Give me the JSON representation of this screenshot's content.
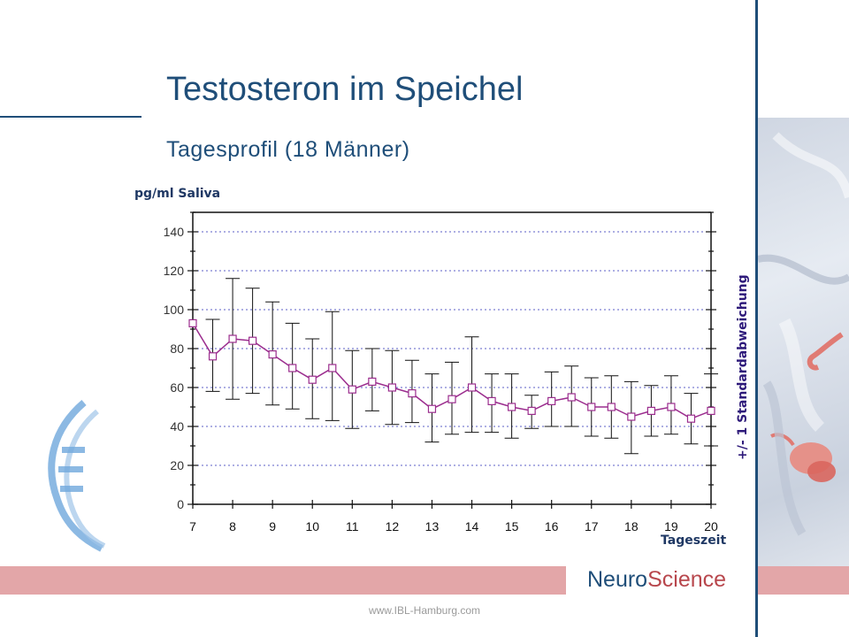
{
  "slide": {
    "title": "Testosteron im Speichel",
    "subtitle": "Tagesprofil (18 Männer)",
    "brand_part1": "Neuro",
    "brand_part2": "Science",
    "url": "www.IBL-Hamburg.com",
    "colors": {
      "title": "#1f4e79",
      "band": "#e3a6a8",
      "brand_accent": "#b8474d",
      "line": "#9b2d8e"
    }
  },
  "chart_data": {
    "type": "line",
    "ylabel": "pg/ml Saliva",
    "xlabel": "Tageszeit",
    "error_label": "+/- 1 Standardabweichung",
    "xlim": [
      7,
      20
    ],
    "ylim": [
      0,
      150
    ],
    "x_ticks": [
      7,
      8,
      9,
      10,
      11,
      12,
      13,
      14,
      15,
      16,
      17,
      18,
      19,
      20
    ],
    "y_ticks": [
      0,
      20,
      40,
      60,
      80,
      100,
      120,
      140
    ],
    "grid": "horizontal-dotted",
    "series": [
      {
        "x": [
          7,
          7.5,
          8,
          8.5,
          9,
          9.5,
          10,
          10.5,
          11,
          11.5,
          12,
          12.5,
          13,
          13.5,
          14,
          14.5,
          15,
          15.5,
          16,
          16.5,
          17,
          17.5,
          18,
          18.5,
          19,
          19.5,
          20
        ],
        "values": [
          93,
          76,
          85,
          84,
          77,
          70,
          64,
          70,
          59,
          63,
          60,
          57,
          49,
          54,
          60,
          53,
          50,
          48,
          53,
          55,
          50,
          50,
          45,
          48,
          50,
          44,
          48
        ],
        "error_low": [
          null,
          58,
          54,
          57,
          51,
          49,
          44,
          43,
          39,
          48,
          41,
          42,
          32,
          36,
          37,
          37,
          34,
          39,
          40,
          40,
          35,
          34,
          26,
          35,
          36,
          31,
          30
        ],
        "error_high": [
          null,
          95,
          116,
          111,
          104,
          93,
          85,
          99,
          79,
          80,
          79,
          74,
          67,
          73,
          86,
          67,
          67,
          56,
          68,
          71,
          65,
          66,
          63,
          61,
          66,
          57,
          67
        ]
      }
    ]
  }
}
